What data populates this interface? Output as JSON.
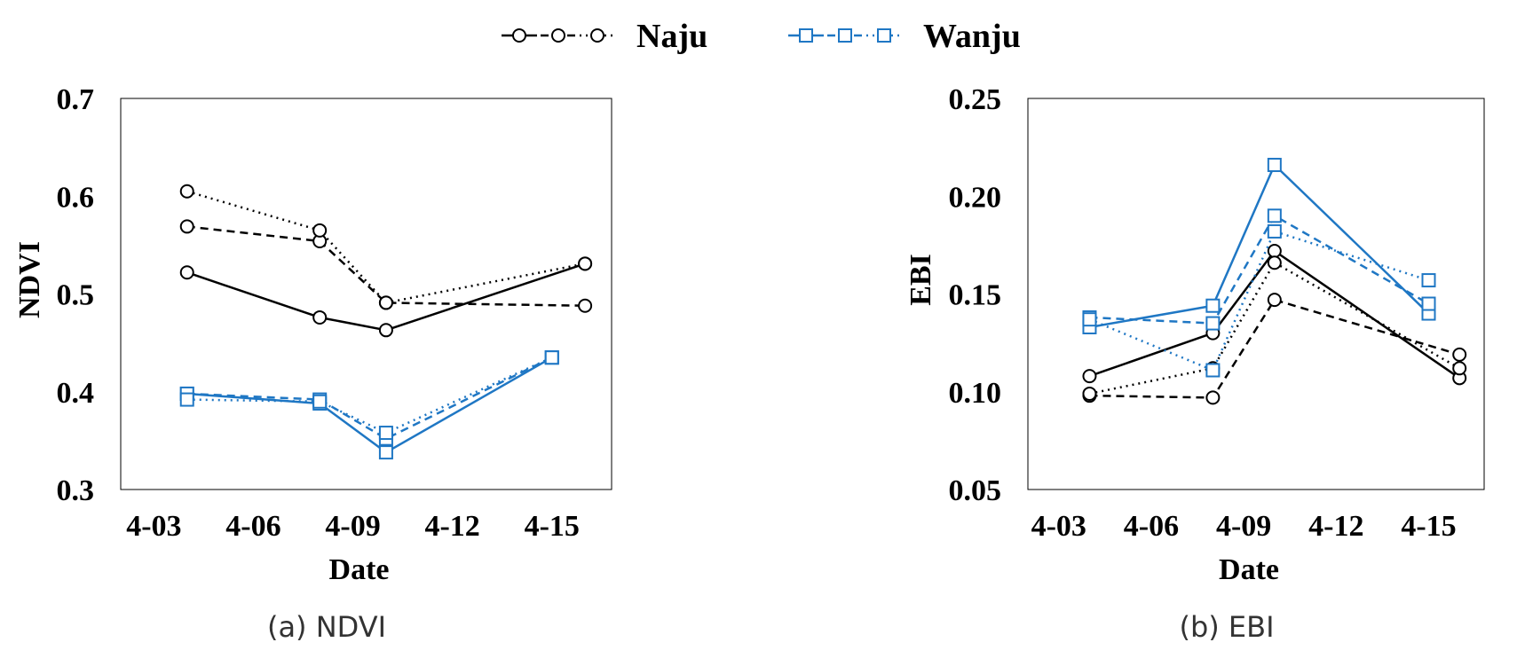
{
  "legend": {
    "items": [
      {
        "name": "Naju",
        "color": "#000000",
        "marker": "circle",
        "dashes": [
          "solid",
          "dashed",
          "dotted"
        ]
      },
      {
        "name": "Wanju",
        "color": "#1f77c4",
        "marker": "square",
        "dashes": [
          "solid",
          "dashed",
          "dotted"
        ]
      }
    ]
  },
  "chart_data": [
    {
      "type": "line",
      "caption": "(a) NDVI",
      "ylabel": "NDVI",
      "xlabel": "Date",
      "xlim": [
        2.0,
        16.8
      ],
      "ylim": [
        0.3,
        0.7
      ],
      "xticks": [
        {
          "value": 3,
          "label": "4-03"
        },
        {
          "value": 6,
          "label": "4-06"
        },
        {
          "value": 9,
          "label": "4-09"
        },
        {
          "value": 12,
          "label": "4-12"
        },
        {
          "value": 15,
          "label": "4-15"
        }
      ],
      "yticks": [
        {
          "value": 0.3,
          "label": "0.3"
        },
        {
          "value": 0.4,
          "label": "0.4"
        },
        {
          "value": 0.5,
          "label": "0.5"
        },
        {
          "value": 0.6,
          "label": "0.6"
        },
        {
          "value": 0.7,
          "label": "0.7"
        }
      ],
      "series": [
        {
          "name": "Naju",
          "style": "solid",
          "color": "#000000",
          "marker": "circle",
          "x": [
            4,
            8,
            10,
            16
          ],
          "values": [
            0.522,
            0.476,
            0.463,
            0.531
          ]
        },
        {
          "name": "Naju",
          "style": "dashed",
          "color": "#000000",
          "marker": "circle",
          "x": [
            4,
            8,
            10,
            16
          ],
          "values": [
            0.569,
            0.554,
            0.491,
            0.488
          ]
        },
        {
          "name": "Naju",
          "style": "dotted",
          "color": "#000000",
          "marker": "circle",
          "x": [
            4,
            8,
            10,
            16
          ],
          "values": [
            0.605,
            0.565,
            0.491,
            0.531
          ]
        },
        {
          "name": "Wanju",
          "style": "solid",
          "color": "#1f77c4",
          "marker": "square",
          "x": [
            4,
            8,
            10,
            15
          ],
          "values": [
            0.398,
            0.388,
            0.338,
            0.435
          ]
        },
        {
          "name": "Wanju",
          "style": "dashed",
          "color": "#1f77c4",
          "marker": "square",
          "x": [
            4,
            8,
            10,
            15
          ],
          "values": [
            0.398,
            0.392,
            0.352,
            0.435
          ]
        },
        {
          "name": "Wanju",
          "style": "dotted",
          "color": "#1f77c4",
          "marker": "square",
          "x": [
            4,
            8,
            10,
            15
          ],
          "values": [
            0.392,
            0.39,
            0.358,
            0.435
          ]
        }
      ]
    },
    {
      "type": "line",
      "caption": "(b) EBI",
      "ylabel": "EBI",
      "xlabel": "Date",
      "xlim": [
        2.0,
        16.8
      ],
      "ylim": [
        0.05,
        0.25
      ],
      "xticks": [
        {
          "value": 3,
          "label": "4-03"
        },
        {
          "value": 6,
          "label": "4-06"
        },
        {
          "value": 9,
          "label": "4-09"
        },
        {
          "value": 12,
          "label": "4-12"
        },
        {
          "value": 15,
          "label": "4-15"
        }
      ],
      "yticks": [
        {
          "value": 0.05,
          "label": "0.05"
        },
        {
          "value": 0.1,
          "label": "0.10"
        },
        {
          "value": 0.15,
          "label": "0.15"
        },
        {
          "value": 0.2,
          "label": "0.20"
        },
        {
          "value": 0.25,
          "label": "0.25"
        }
      ],
      "series": [
        {
          "name": "Naju",
          "style": "solid",
          "color": "#000000",
          "marker": "circle",
          "x": [
            4,
            8,
            10,
            16
          ],
          "values": [
            0.108,
            0.13,
            0.172,
            0.107
          ]
        },
        {
          "name": "Naju",
          "style": "dashed",
          "color": "#000000",
          "marker": "circle",
          "x": [
            4,
            8,
            10,
            16
          ],
          "values": [
            0.098,
            0.097,
            0.147,
            0.119
          ]
        },
        {
          "name": "Naju",
          "style": "dotted",
          "color": "#000000",
          "marker": "circle",
          "x": [
            4,
            8,
            10,
            16
          ],
          "values": [
            0.099,
            0.112,
            0.166,
            0.112
          ]
        },
        {
          "name": "Wanju",
          "style": "solid",
          "color": "#1f77c4",
          "marker": "square",
          "x": [
            4,
            8,
            10,
            15
          ],
          "values": [
            0.133,
            0.144,
            0.216,
            0.14
          ]
        },
        {
          "name": "Wanju",
          "style": "dashed",
          "color": "#1f77c4",
          "marker": "square",
          "x": [
            4,
            8,
            10,
            15
          ],
          "values": [
            0.138,
            0.135,
            0.19,
            0.145
          ]
        },
        {
          "name": "Wanju",
          "style": "dotted",
          "color": "#1f77c4",
          "marker": "square",
          "x": [
            4,
            8,
            10,
            15
          ],
          "values": [
            0.137,
            0.111,
            0.182,
            0.157
          ]
        }
      ]
    }
  ]
}
